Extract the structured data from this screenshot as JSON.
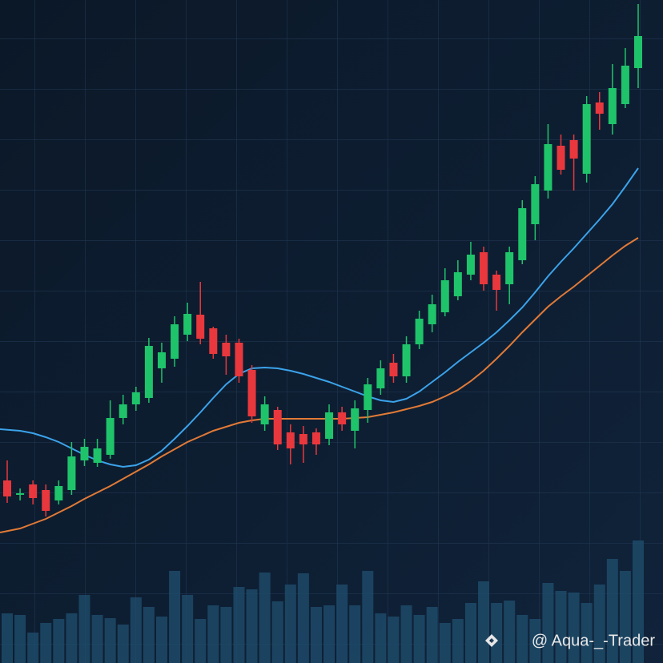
{
  "chart_data": {
    "type": "candlestick",
    "ylim": [
      0,
      828
    ],
    "y2lim": [
      0,
      828
    ],
    "up_color": "#1fc46a",
    "down_color": "#e8383d",
    "open": [
      228,
      210,
      223,
      216,
      203,
      216,
      253,
      250,
      260,
      306,
      323,
      331,
      368,
      380,
      410,
      435,
      418,
      400,
      400,
      366,
      298,
      316,
      288,
      286,
      288,
      280,
      313,
      290,
      316,
      343,
      375,
      358,
      398,
      423,
      438,
      458,
      485,
      513,
      485,
      473,
      503,
      548,
      590,
      646,
      653,
      611,
      700,
      673,
      698,
      743
    ],
    "high": [
      253,
      218,
      228,
      223,
      228,
      276,
      280,
      280,
      328,
      335,
      345,
      406,
      400,
      433,
      450,
      476,
      420,
      410,
      405,
      372,
      333,
      320,
      298,
      296,
      293,
      323,
      320,
      328,
      356,
      378,
      386,
      408,
      440,
      460,
      493,
      503,
      526,
      520,
      490,
      520,
      578,
      608,
      673,
      660,
      660,
      708,
      713,
      748,
      768,
      823
    ],
    "low": [
      200,
      203,
      198,
      183,
      198,
      210,
      246,
      245,
      255,
      298,
      315,
      325,
      350,
      370,
      402,
      398,
      380,
      360,
      350,
      300,
      290,
      266,
      248,
      250,
      260,
      272,
      290,
      268,
      300,
      335,
      350,
      350,
      392,
      413,
      433,
      453,
      478,
      465,
      440,
      448,
      498,
      528,
      580,
      610,
      590,
      600,
      666,
      660,
      693,
      718
    ],
    "close": [
      208,
      212,
      206,
      190,
      221,
      258,
      270,
      268,
      306,
      323,
      338,
      396,
      388,
      423,
      436,
      405,
      386,
      383,
      358,
      308,
      323,
      273,
      268,
      273,
      273,
      313,
      298,
      318,
      348,
      368,
      358,
      398,
      430,
      448,
      478,
      488,
      510,
      473,
      466,
      513,
      568,
      598,
      648,
      616,
      630,
      698,
      686,
      718,
      746,
      783
    ],
    "ma_lines": [
      {
        "color": "#3ba3ea",
        "values": [
          292,
          290,
          287,
          282,
          276,
          268,
          260,
          253,
          248,
          245,
          247,
          254,
          265,
          280,
          296,
          313,
          331,
          348,
          361,
          368,
          369,
          368,
          365,
          361,
          356,
          351,
          345,
          339,
          333,
          328,
          326,
          330,
          339,
          351,
          363,
          376,
          388,
          400,
          413,
          428,
          444,
          463,
          483,
          501,
          518,
          536,
          554,
          573,
          595,
          618
        ]
      },
      {
        "color": "#e27a36",
        "values": [
          163,
          168,
          174,
          180,
          188,
          196,
          205,
          213,
          221,
          230,
          239,
          248,
          258,
          267,
          276,
          283,
          290,
          295,
          300,
          303,
          305,
          305,
          305,
          305,
          305,
          305,
          305,
          306,
          307,
          310,
          313,
          317,
          321,
          326,
          333,
          341,
          352,
          365,
          380,
          396,
          413,
          429,
          445,
          458,
          470,
          483,
          496,
          509,
          521,
          531
        ]
      }
    ],
    "volume": {
      "color": "#1d4a68",
      "values": [
        62,
        60,
        38,
        50,
        55,
        62,
        85,
        60,
        56,
        48,
        82,
        70,
        58,
        115,
        85,
        55,
        72,
        70,
        95,
        92,
        113,
        77,
        98,
        112,
        70,
        72,
        98,
        72,
        115,
        62,
        58,
        72,
        60,
        70,
        50,
        55,
        75,
        102,
        75,
        78,
        60,
        55,
        100,
        90,
        88,
        75,
        98,
        130,
        115,
        153
      ]
    },
    "watermark": "@ Aqua-_-Trader"
  }
}
